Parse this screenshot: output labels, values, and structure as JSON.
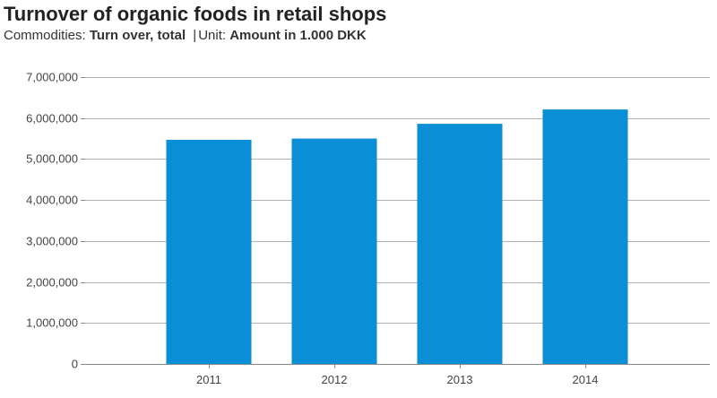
{
  "header": {
    "title": "Turnover of organic foods in retail shops",
    "commodities_label": "Commodities:",
    "commodities_value": "Turn over, total",
    "separator": "|",
    "unit_label": "Unit:",
    "unit_value": "Amount in 1.000 DKK"
  },
  "colors": {
    "bar": "#0a8fd6",
    "grid": "#b3b3b3",
    "axis": "#888888"
  },
  "chart_data": {
    "type": "bar",
    "title": "Turnover of organic foods in retail shops",
    "xlabel": "",
    "ylabel": "",
    "categories": [
      "2011",
      "2012",
      "2013",
      "2014"
    ],
    "values": [
      5470000,
      5500000,
      5860000,
      6210000
    ],
    "ylim": [
      0,
      7000000
    ],
    "yticks": [
      0,
      1000000,
      2000000,
      3000000,
      4000000,
      5000000,
      6000000,
      7000000
    ],
    "ytick_labels": [
      "0",
      "1,000,000",
      "2,000,000",
      "3,000,000",
      "4,000,000",
      "5,000,000",
      "6,000,000",
      "7,000,000"
    ],
    "grid": true,
    "legend": "none"
  }
}
